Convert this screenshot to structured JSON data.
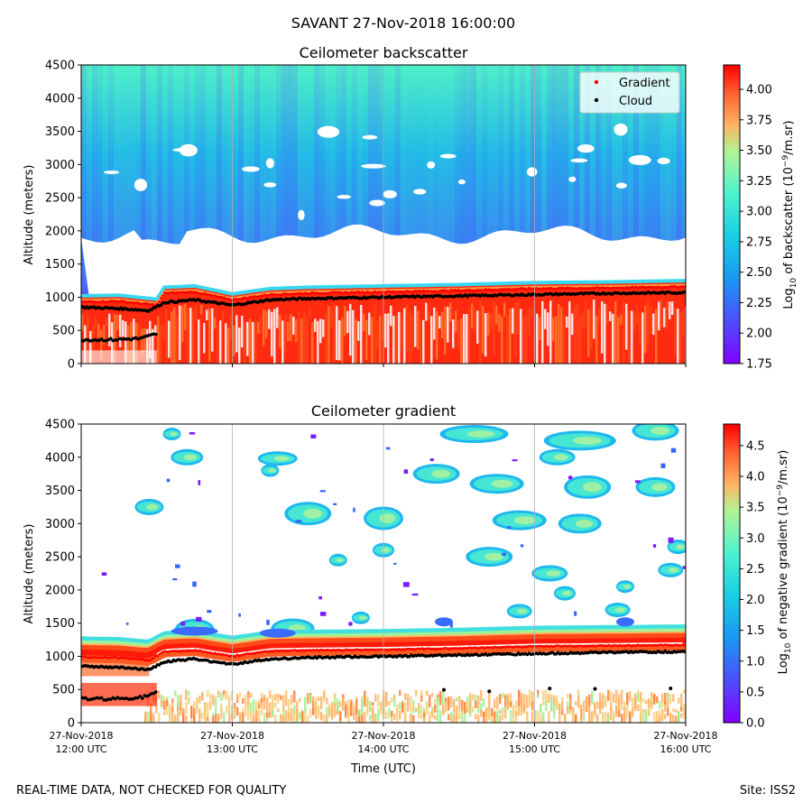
{
  "suptitle": "SAVANT 27-Nov-2018 16:00:00",
  "footer": {
    "left": "REAL-TIME DATA, NOT CHECKED FOR QUALITY",
    "right": "Site: ISS2"
  },
  "chart_data": [
    {
      "type": "heatmap",
      "title": "Ceilometer backscatter",
      "ylabel": "Altitude (meters)",
      "xlabel": "",
      "ylim": [
        0,
        4500
      ],
      "yticks": [
        0,
        500,
        1000,
        1500,
        2000,
        2500,
        3000,
        3500,
        4000,
        4500
      ],
      "xlim_hours": [
        12,
        16
      ],
      "grid": "vertical",
      "legend": {
        "position": "top-right",
        "entries": [
          {
            "label": "Gradient",
            "color": "#ff0000"
          },
          {
            "label": "Cloud",
            "color": "#000000"
          }
        ]
      },
      "colorbar": {
        "label_prefix": "Log",
        "label_sub": "10",
        "label_mid": " of backscatter (10",
        "label_sup": "−9",
        "label_suffix": "/m.sr)",
        "range": [
          1.75,
          4.2
        ],
        "ticks": [
          "1.75",
          "2.00",
          "2.25",
          "2.50",
          "2.75",
          "3.00",
          "3.25",
          "3.50",
          "3.75",
          "4.00"
        ]
      },
      "boundary_layer_top_m": [
        [
          12.0,
          950
        ],
        [
          12.25,
          960
        ],
        [
          12.5,
          900
        ],
        [
          12.55,
          1080
        ],
        [
          12.75,
          1100
        ],
        [
          13.0,
          980
        ],
        [
          13.25,
          1060
        ],
        [
          13.5,
          1080
        ],
        [
          14.0,
          1100
        ],
        [
          14.5,
          1120
        ],
        [
          15.0,
          1150
        ],
        [
          15.5,
          1160
        ],
        [
          16.0,
          1180
        ]
      ],
      "cloud_base_m": [
        [
          12.0,
          850
        ],
        [
          12.25,
          830
        ],
        [
          12.45,
          800
        ],
        [
          12.55,
          920
        ],
        [
          12.75,
          960
        ],
        [
          13.0,
          880
        ],
        [
          13.25,
          960
        ],
        [
          13.5,
          980
        ],
        [
          14.0,
          1000
        ],
        [
          14.5,
          1020
        ],
        [
          15.0,
          1040
        ],
        [
          15.5,
          1060
        ],
        [
          16.0,
          1070
        ]
      ],
      "lower_cloud_m": [
        [
          12.0,
          360
        ],
        [
          12.2,
          360
        ],
        [
          12.4,
          380
        ],
        [
          12.5,
          450
        ]
      ]
    },
    {
      "type": "heatmap",
      "title": "Ceilometer gradient",
      "ylabel": "Altitude (meters)",
      "xlabel": "Time (UTC)",
      "ylim": [
        0,
        4500
      ],
      "yticks": [
        0,
        500,
        1000,
        1500,
        2000,
        2500,
        3000,
        3500,
        4000,
        4500
      ],
      "xlim_hours": [
        12,
        16
      ],
      "xticks": [
        {
          "date": "27-Nov-2018",
          "time": "12:00 UTC"
        },
        {
          "date": "27-Nov-2018",
          "time": "13:00 UTC"
        },
        {
          "date": "27-Nov-2018",
          "time": "14:00 UTC"
        },
        {
          "date": "27-Nov-2018",
          "time": "15:00 UTC"
        },
        {
          "date": "27-Nov-2018",
          "time": "16:00 UTC"
        }
      ],
      "grid": "vertical",
      "colorbar": {
        "label_prefix": "Log",
        "label_sub": "10",
        "label_mid": " of negative gradient (10",
        "label_sup": "−9",
        "label_suffix": "/m.sr)",
        "range": [
          0.0,
          4.85
        ],
        "ticks": [
          "0.0",
          "0.5",
          "1.0",
          "1.5",
          "2.0",
          "2.5",
          "3.0",
          "3.5",
          "4.0",
          "4.5"
        ]
      },
      "gradient_layer_m": [
        [
          12.0,
          1000
        ],
        [
          12.25,
          990
        ],
        [
          12.45,
          950
        ],
        [
          12.55,
          1080
        ],
        [
          12.75,
          1100
        ],
        [
          13.0,
          1010
        ],
        [
          13.25,
          1090
        ],
        [
          13.5,
          1100
        ],
        [
          14.0,
          1110
        ],
        [
          14.5,
          1130
        ],
        [
          15.0,
          1160
        ],
        [
          15.5,
          1170
        ],
        [
          16.0,
          1180
        ]
      ]
    }
  ]
}
